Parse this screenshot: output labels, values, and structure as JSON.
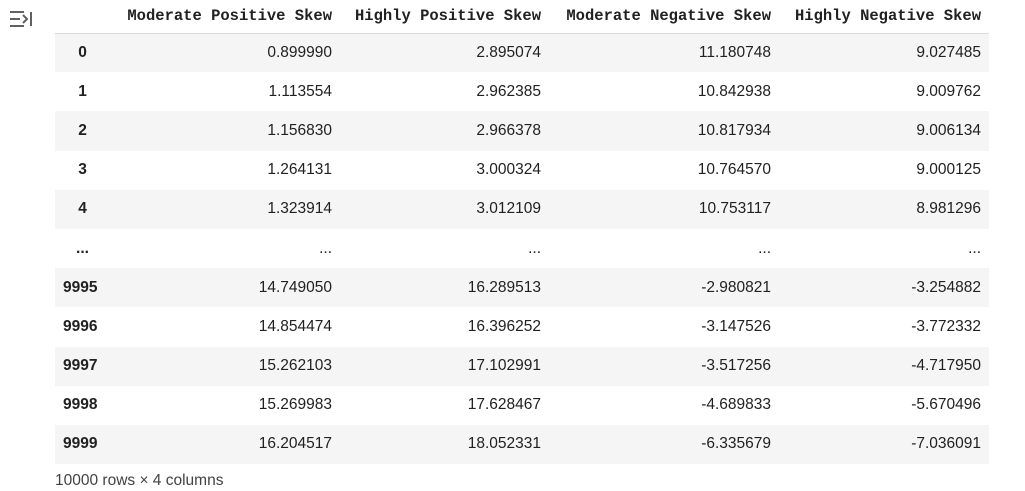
{
  "table": {
    "columns": [
      "Moderate Positive Skew",
      "Highly Positive Skew",
      "Moderate Negative Skew",
      "Highly Negative Skew"
    ],
    "rows": [
      {
        "index": "0",
        "values": [
          "0.899990",
          "2.895074",
          "11.180748",
          "9.027485"
        ]
      },
      {
        "index": "1",
        "values": [
          "1.113554",
          "2.962385",
          "10.842938",
          "9.009762"
        ]
      },
      {
        "index": "2",
        "values": [
          "1.156830",
          "2.966378",
          "10.817934",
          "9.006134"
        ]
      },
      {
        "index": "3",
        "values": [
          "1.264131",
          "3.000324",
          "10.764570",
          "9.000125"
        ]
      },
      {
        "index": "4",
        "values": [
          "1.323914",
          "3.012109",
          "10.753117",
          "8.981296"
        ]
      },
      {
        "index": "...",
        "values": [
          "...",
          "...",
          "...",
          "..."
        ]
      },
      {
        "index": "9995",
        "values": [
          "14.749050",
          "16.289513",
          "-2.980821",
          "-3.254882"
        ]
      },
      {
        "index": "9996",
        "values": [
          "14.854474",
          "16.396252",
          "-3.147526",
          "-3.772332"
        ]
      },
      {
        "index": "9997",
        "values": [
          "15.262103",
          "17.102991",
          "-3.517256",
          "-4.717950"
        ]
      },
      {
        "index": "9998",
        "values": [
          "15.269983",
          "17.628467",
          "-4.689833",
          "-5.670496"
        ]
      },
      {
        "index": "9999",
        "values": [
          "16.204517",
          "18.052331",
          "-6.335679",
          "-7.036091"
        ]
      }
    ]
  },
  "footer": {
    "shape_text": "10000 rows × 4 columns"
  },
  "icons": {
    "output_toggle": "output-toggle-icon"
  },
  "colors": {
    "stripe": "#f5f5f5",
    "text": "#212121",
    "border": "#dadada"
  }
}
